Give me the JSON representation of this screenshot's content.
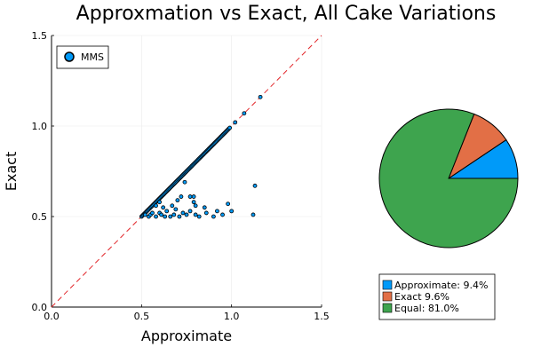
{
  "title": "Approxmation vs Exact, All Cake Variations",
  "chart_data": [
    {
      "type": "scatter",
      "xlabel": "Approximate",
      "ylabel": "Exact",
      "xlim": [
        0,
        1.5
      ],
      "ylim": [
        0,
        1.5
      ],
      "x_ticks": [
        "0.0",
        "0.5",
        "1.0",
        "1.5"
      ],
      "y_ticks": [
        "0.0",
        "0.5",
        "1.0",
        "1.5"
      ],
      "grid": true,
      "legend_position": "top-left",
      "reference_line": {
        "style": "dashed",
        "color": "#e2262a",
        "from": [
          0,
          0
        ],
        "to": [
          1.5,
          1.5
        ]
      },
      "series": [
        {
          "name": "MMS",
          "color": "#009af9",
          "points_on_diagonal": {
            "x_start": 0.5,
            "x_end": 0.99,
            "extra_x": [
              1.02,
              1.07,
              1.16
            ]
          },
          "points_off_diagonal": [
            [
              0.52,
              0.51
            ],
            [
              0.54,
              0.5
            ],
            [
              0.55,
              0.51
            ],
            [
              0.56,
              0.52
            ],
            [
              0.58,
              0.5
            ],
            [
              0.6,
              0.52
            ],
            [
              0.61,
              0.51
            ],
            [
              0.63,
              0.5
            ],
            [
              0.64,
              0.53
            ],
            [
              0.66,
              0.5
            ],
            [
              0.68,
              0.51
            ],
            [
              0.69,
              0.54
            ],
            [
              0.71,
              0.5
            ],
            [
              0.73,
              0.52
            ],
            [
              0.75,
              0.51
            ],
            [
              0.77,
              0.53
            ],
            [
              0.8,
              0.51
            ],
            [
              0.82,
              0.5
            ],
            [
              0.86,
              0.52
            ],
            [
              0.9,
              0.5
            ],
            [
              0.58,
              0.56
            ],
            [
              0.62,
              0.55
            ],
            [
              0.6,
              0.58
            ],
            [
              0.7,
              0.59
            ],
            [
              0.72,
              0.61
            ],
            [
              0.77,
              0.61
            ],
            [
              0.79,
              0.58
            ],
            [
              0.79,
              0.61
            ],
            [
              0.74,
              0.69
            ],
            [
              0.8,
              0.56
            ],
            [
              0.98,
              0.57
            ],
            [
              1.0,
              0.53
            ],
            [
              1.13,
              0.67
            ],
            [
              1.12,
              0.51
            ],
            [
              0.92,
              0.53
            ],
            [
              0.67,
              0.56
            ],
            [
              0.85,
              0.55
            ],
            [
              0.95,
              0.51
            ]
          ]
        }
      ]
    },
    {
      "type": "pie",
      "slices": [
        {
          "label": "Approximate: 9.4%",
          "value": 9.4,
          "color": "#009af9"
        },
        {
          "label": "Exact 9.6%",
          "value": 9.6,
          "color": "#e26f46"
        },
        {
          "label": "Equal: 81.0%",
          "value": 81.0,
          "color": "#3ea44e"
        }
      ],
      "legend_position": "bottom"
    }
  ]
}
